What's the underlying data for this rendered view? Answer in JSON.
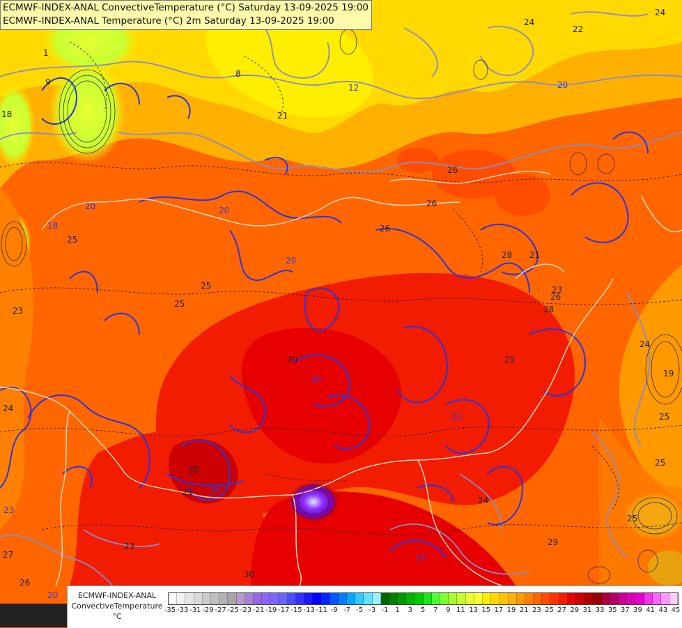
{
  "titles": {
    "line1": "ECMWF-INDEX-ANAL ConvectiveTemperature (°C) Saturday 13-09-2025 19:00",
    "line2": "ECMWF-INDEX-ANAL Temperature (°C) 2m Saturday 13-09-2025 19:00"
  },
  "legend": {
    "label_line1": "ECMWF-INDEX-ANAL",
    "label_line2": "ConvectiveTemperature",
    "label_line3": "°C",
    "ticks": [
      "-35",
      "-33",
      "-31",
      "-29",
      "-27",
      "-25",
      "-23",
      "-21",
      "-19",
      "-17",
      "-15",
      "-13",
      "-11",
      "-9",
      "-7",
      "-5",
      "-3",
      "-1",
      "1",
      "3",
      "5",
      "7",
      "9",
      "11",
      "13",
      "15",
      "17",
      "19",
      "21",
      "23",
      "25",
      "27",
      "29",
      "31",
      "33",
      "35",
      "37",
      "39",
      "41",
      "43",
      "45"
    ],
    "colors": [
      "#ffffff",
      "#f2f2f2",
      "#e6e6e6",
      "#d9d9d9",
      "#cccccc",
      "#bfbfbf",
      "#b3b3b3",
      "#a6a6a6",
      "#b399cc",
      "#a680d9",
      "#9966e6",
      "#8c66ff",
      "#7f66ff",
      "#6666ff",
      "#4d4dff",
      "#3333ff",
      "#1a1aff",
      "#0000ff",
      "#0026ff",
      "#0059ff",
      "#0080ff",
      "#00a6ff",
      "#33c8ff",
      "#66e0ff",
      "#99f0ff",
      "#006600",
      "#008000",
      "#009900",
      "#00b300",
      "#00cc00",
      "#1ae61a",
      "#4dff33",
      "#80ff33",
      "#a6ff33",
      "#c8ff33",
      "#e6ff33",
      "#ffff33",
      "#ffee00",
      "#ffd900",
      "#ffc400",
      "#ffb000",
      "#ff9900",
      "#ff8000",
      "#ff6600",
      "#ff4d00",
      "#ff3300",
      "#f21c00",
      "#e60000",
      "#cc0000",
      "#b30000",
      "#990000",
      "#a6003d",
      "#b30066",
      "#cc0099",
      "#d900b3",
      "#e600cc",
      "#f233e6",
      "#ff66ff",
      "#ff99ff",
      "#ffccff"
    ]
  },
  "contour_labels": [
    {
      "text": "1"
    },
    {
      "text": "9"
    },
    {
      "text": "18"
    },
    {
      "text": "18"
    },
    {
      "text": "25"
    },
    {
      "text": "23"
    },
    {
      "text": "24"
    },
    {
      "text": "20"
    },
    {
      "text": "25"
    },
    {
      "text": "20"
    },
    {
      "text": "21"
    },
    {
      "text": "20"
    },
    {
      "text": "25"
    },
    {
      "text": "26"
    },
    {
      "text": "26"
    },
    {
      "text": "26"
    },
    {
      "text": "28"
    },
    {
      "text": "21"
    },
    {
      "text": "28"
    },
    {
      "text": "26"
    },
    {
      "text": "23"
    },
    {
      "text": "20"
    },
    {
      "text": "20"
    },
    {
      "text": "30"
    },
    {
      "text": "20"
    },
    {
      "text": "22"
    },
    {
      "text": "24"
    },
    {
      "text": "24"
    },
    {
      "text": "23"
    },
    {
      "text": "27"
    },
    {
      "text": "26"
    },
    {
      "text": "20"
    },
    {
      "text": "30"
    },
    {
      "text": "29"
    },
    {
      "text": "24"
    },
    {
      "text": "19"
    },
    {
      "text": "25"
    },
    {
      "text": "25"
    },
    {
      "text": "24"
    },
    {
      "text": "24"
    },
    {
      "text": "22"
    },
    {
      "text": "20"
    },
    {
      "text": "12"
    },
    {
      "text": "8"
    },
    {
      "text": "23"
    },
    {
      "text": "21"
    },
    {
      "text": "25"
    },
    {
      "text": "25"
    }
  ]
}
